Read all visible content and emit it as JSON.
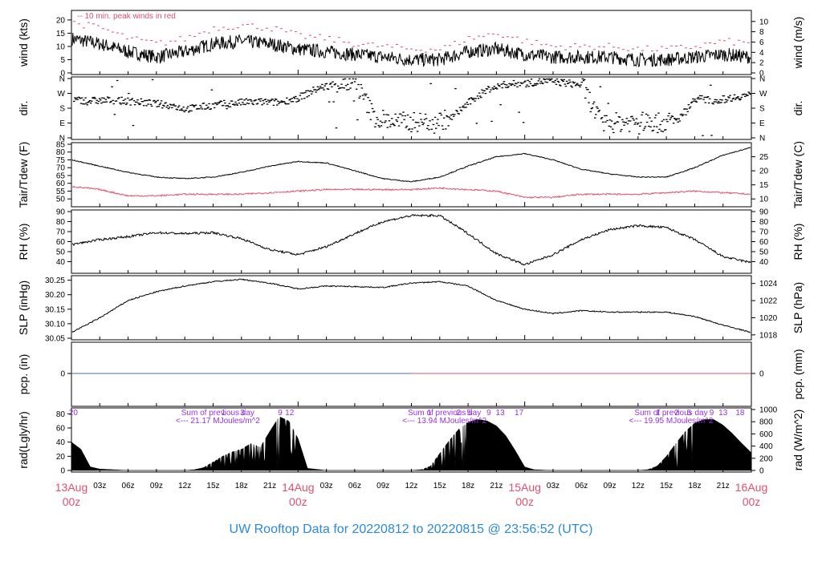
{
  "title": "UW Rooftop Data for 20220812  to  20220815 @ 23:56:52  (UTC)",
  "colors": {
    "peak": "#e0506e",
    "dew": "#e0506e",
    "pcp_left": "#3a6fc4",
    "pcp_right": "#e0506e",
    "annot": "#9b30e6",
    "title": "#2a8ad8",
    "date": "#e0506e"
  },
  "time_axis": {
    "range_hours": [
      0,
      72
    ],
    "hour_ticks": [
      {
        "h": 3,
        "label": "03z"
      },
      {
        "h": 6,
        "label": "06z"
      },
      {
        "h": 9,
        "label": "09z"
      },
      {
        "h": 12,
        "label": "12z"
      },
      {
        "h": 15,
        "label": "15z"
      },
      {
        "h": 18,
        "label": "18z"
      },
      {
        "h": 21,
        "label": "21z"
      },
      {
        "h": 27,
        "label": "03z"
      },
      {
        "h": 30,
        "label": "06z"
      },
      {
        "h": 33,
        "label": "09z"
      },
      {
        "h": 36,
        "label": "12z"
      },
      {
        "h": 39,
        "label": "15z"
      },
      {
        "h": 42,
        "label": "18z"
      },
      {
        "h": 45,
        "label": "21z"
      },
      {
        "h": 51,
        "label": "03z"
      },
      {
        "h": 54,
        "label": "06z"
      },
      {
        "h": 57,
        "label": "09z"
      },
      {
        "h": 60,
        "label": "12z"
      },
      {
        "h": 63,
        "label": "15z"
      },
      {
        "h": 66,
        "label": "18z"
      },
      {
        "h": 69,
        "label": "21z"
      }
    ],
    "day_labels": [
      {
        "h": 0,
        "date": "13Aug",
        "time": "00z"
      },
      {
        "h": 24,
        "date": "14Aug",
        "time": "00z"
      },
      {
        "h": 48,
        "date": "15Aug",
        "time": "00z"
      },
      {
        "h": 72,
        "date": "16Aug",
        "time": "00z"
      }
    ]
  },
  "chart_data": [
    {
      "type": "line",
      "panel": "wind",
      "ylabel_left": "wind (kts)",
      "ylabel_right": "wind (m/s)",
      "ylim": [
        0,
        23
      ],
      "left_ticks": [
        0,
        5,
        10,
        15,
        20
      ],
      "right_ticks": [
        0,
        2,
        4,
        6,
        8,
        10
      ],
      "annotation": "10 min. peak winds in red",
      "series": [
        {
          "key": "speed",
          "x": [
            0,
            3,
            6,
            9,
            12,
            15,
            18,
            21,
            24,
            27,
            30,
            33,
            36,
            39,
            42,
            45,
            48,
            51,
            54,
            57,
            60,
            63,
            66,
            69,
            72
          ],
          "values": [
            13,
            11,
            8,
            6,
            8,
            11,
            12,
            11,
            9,
            8,
            7,
            6,
            5,
            5,
            8,
            9,
            7,
            6,
            6,
            6,
            5,
            5,
            6,
            7,
            6
          ]
        },
        {
          "key": "peak",
          "x": [
            0,
            3,
            6,
            9,
            12,
            15,
            18,
            21,
            24,
            27,
            30,
            33,
            36,
            39,
            42,
            45,
            48,
            51,
            54,
            57,
            60,
            63,
            66,
            69,
            72
          ],
          "values": [
            19,
            17,
            13,
            11,
            13,
            17,
            18,
            17,
            14,
            13,
            11,
            10,
            9,
            9,
            13,
            15,
            12,
            10,
            10,
            10,
            9,
            9,
            10,
            12,
            11
          ]
        }
      ]
    },
    {
      "type": "scatter",
      "panel": "direction",
      "ylabel_left": "dir.",
      "ylabel_right": "dir.",
      "ylim": [
        0,
        360
      ],
      "tick_labels": [
        "N",
        "E",
        "S",
        "W",
        "N"
      ],
      "x": [
        0,
        2,
        4,
        6,
        8,
        10,
        12,
        14,
        16,
        18,
        20,
        22,
        24,
        26,
        28,
        30,
        32,
        34,
        36,
        38,
        40,
        42,
        44,
        46,
        48,
        50,
        52,
        54,
        56,
        58,
        60,
        62,
        64,
        66,
        68,
        70,
        72
      ],
      "values": [
        230,
        225,
        228,
        222,
        212,
        200,
        175,
        190,
        205,
        215,
        218,
        215,
        245,
        300,
        330,
        330,
        125,
        100,
        95,
        100,
        115,
        215,
        295,
        325,
        330,
        345,
        335,
        320,
        85,
        95,
        100,
        90,
        100,
        240,
        225,
        245,
        265
      ]
    },
    {
      "type": "line",
      "panel": "temperature",
      "ylabel_left": "Tair/Tdew (F)",
      "ylabel_right": "Tair/Tdew (C)",
      "ylim": [
        46,
        85
      ],
      "left_ticks": [
        50,
        55,
        60,
        65,
        70,
        75,
        80,
        85
      ],
      "right_ticks": [
        10,
        15,
        20,
        25
      ],
      "series": [
        {
          "key": "tair",
          "x": [
            0,
            3,
            6,
            9,
            12,
            15,
            18,
            21,
            24,
            27,
            30,
            33,
            36,
            39,
            42,
            45,
            48,
            51,
            54,
            57,
            60,
            63,
            66,
            69,
            72
          ],
          "values": [
            75,
            71,
            67,
            64,
            63,
            64,
            67,
            71,
            74,
            73,
            68,
            63,
            61,
            64,
            71,
            77,
            79,
            75,
            69,
            66,
            64,
            64,
            70,
            78,
            83
          ]
        },
        {
          "key": "tdew",
          "x": [
            0,
            3,
            6,
            9,
            12,
            15,
            18,
            21,
            24,
            27,
            30,
            33,
            36,
            39,
            42,
            45,
            48,
            51,
            54,
            57,
            60,
            63,
            66,
            69,
            72
          ],
          "values": [
            58,
            56,
            52,
            52,
            53,
            53,
            53,
            54,
            55,
            56,
            56,
            56,
            56,
            57,
            56,
            55,
            51,
            51,
            53,
            53,
            53,
            54,
            55,
            54,
            53
          ]
        }
      ]
    },
    {
      "type": "line",
      "panel": "rh",
      "ylabel_left": "RH (%)",
      "ylabel_right": "RH (%)",
      "ylim": [
        30,
        90
      ],
      "left_ticks": [
        40,
        50,
        60,
        70,
        80,
        90
      ],
      "right_ticks": [
        40,
        50,
        60,
        70,
        80,
        90
      ],
      "x": [
        0,
        3,
        6,
        9,
        12,
        15,
        18,
        21,
        24,
        27,
        30,
        33,
        36,
        39,
        42,
        45,
        48,
        51,
        54,
        57,
        60,
        63,
        66,
        69,
        72
      ],
      "values": [
        57,
        62,
        65,
        69,
        68,
        69,
        63,
        52,
        47,
        55,
        68,
        80,
        86,
        86,
        68,
        48,
        37,
        47,
        62,
        72,
        76,
        74,
        62,
        45,
        39
      ]
    },
    {
      "type": "line",
      "panel": "slp",
      "ylabel_left": "SLP (inHg)",
      "ylabel_right": "SLP (hPa)",
      "ylim": [
        30.05,
        30.26
      ],
      "left_ticks": [
        "30.05",
        "30.10",
        "30.15",
        "30.20",
        "30.25"
      ],
      "right_ticks": [
        1018,
        1020,
        1022,
        1024
      ],
      "x": [
        0,
        3,
        6,
        9,
        12,
        15,
        18,
        21,
        24,
        27,
        30,
        33,
        36,
        39,
        42,
        45,
        48,
        51,
        54,
        57,
        60,
        63,
        66,
        69,
        72
      ],
      "values": [
        30.07,
        30.12,
        30.18,
        30.21,
        30.23,
        30.245,
        30.253,
        30.24,
        30.22,
        30.23,
        30.228,
        30.225,
        30.24,
        30.245,
        30.23,
        30.18,
        30.15,
        30.135,
        30.145,
        30.14,
        30.14,
        30.14,
        30.125,
        30.095,
        30.07
      ]
    },
    {
      "type": "line",
      "panel": "precipitation",
      "ylabel_left": "pcp. (in)",
      "ylabel_right": "pcp. (mm)",
      "left_ticks": [
        0
      ],
      "right_ticks": [
        0
      ],
      "x": [
        0,
        72
      ],
      "values": [
        0,
        0
      ]
    },
    {
      "type": "area",
      "panel": "radiation",
      "ylabel_left": "rad(Lgly/hr)",
      "ylabel_right": "rad (W/m^2)",
      "ylim": [
        0,
        86
      ],
      "left_ticks": [
        0,
        20,
        40,
        60,
        80
      ],
      "right_ticks": [
        0,
        200,
        400,
        600,
        800,
        1000
      ],
      "x": [
        0,
        1,
        2,
        3,
        6,
        12,
        13,
        14,
        15,
        16,
        17,
        18,
        19,
        20,
        21,
        22,
        23,
        24,
        25,
        27,
        36,
        37,
        38,
        39,
        40,
        41,
        42,
        43,
        44,
        45,
        46,
        47,
        48,
        49,
        51,
        60,
        61,
        62,
        63,
        64,
        65,
        66,
        67,
        68,
        69,
        70,
        71,
        72
      ],
      "values": [
        40,
        30,
        5,
        2,
        0,
        0,
        1,
        4,
        12,
        20,
        26,
        30,
        38,
        33,
        55,
        76,
        70,
        45,
        3,
        0,
        0,
        1,
        6,
        24,
        42,
        58,
        68,
        72,
        70,
        63,
        49,
        28,
        5,
        1,
        0,
        0,
        1,
        6,
        20,
        38,
        55,
        67,
        72,
        72,
        64,
        52,
        38,
        25
      ],
      "daily_totals": [
        "Sum of previous day",
        "<--- 21.17 MJoules/m^2",
        "Sum of previous day",
        "<--- 13.94 MJoules/m^2",
        "Sum of previous day",
        "<--- 19.95 MJoules/m^2"
      ],
      "hour_marks": [
        {
          "h": 0.2,
          "label": "20"
        },
        {
          "h": 16.1,
          "label": "1"
        },
        {
          "h": 18.1,
          "label": "3"
        },
        {
          "h": 22.1,
          "label": "9"
        },
        {
          "h": 23.1,
          "label": "12"
        },
        {
          "h": 37.9,
          "label": "1"
        },
        {
          "h": 41,
          "label": "2"
        },
        {
          "h": 42.1,
          "label": "5"
        },
        {
          "h": 44.2,
          "label": "9"
        },
        {
          "h": 45.4,
          "label": "13"
        },
        {
          "h": 47.4,
          "label": "17"
        },
        {
          "h": 62.1,
          "label": "1"
        },
        {
          "h": 64.1,
          "label": "2"
        },
        {
          "h": 65.4,
          "label": "5"
        },
        {
          "h": 67.8,
          "label": "9"
        },
        {
          "h": 69,
          "label": "13"
        },
        {
          "h": 70.8,
          "label": "18"
        }
      ]
    }
  ]
}
